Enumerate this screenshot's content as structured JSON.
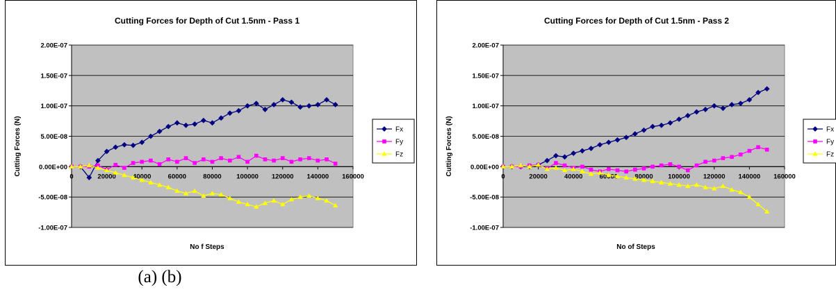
{
  "figure": {
    "caption": "(a)  (b)"
  },
  "chart_data": [
    {
      "type": "line",
      "title": "Cutting Forces for Depth of Cut 1.5nm - Pass 1",
      "xlabel": "No f Steps",
      "ylabel": "Cutting Forces (N)",
      "xlim": [
        0,
        160000
      ],
      "ylim": [
        -1e-07,
        2e-07
      ],
      "x_ticks": [
        "0",
        "20000",
        "40000",
        "60000",
        "80000",
        "100000",
        "120000",
        "140000",
        "160000"
      ],
      "y_ticks": [
        "2.00E-07",
        "1.50E-07",
        "1.00E-07",
        "5.00E-08",
        "0.00E+00",
        "-5.00E-08",
        "-1.00E-07"
      ],
      "grid": "horizontal major gridlines",
      "plot_background": "#c0c0c0",
      "legend_position": "right",
      "series": [
        {
          "name": "Fx",
          "color": "#000080",
          "marker": "diamond",
          "x": [
            0,
            5000,
            10000,
            15000,
            20000,
            25000,
            30000,
            35000,
            40000,
            45000,
            50000,
            55000,
            60000,
            65000,
            70000,
            75000,
            80000,
            85000,
            90000,
            95000,
            100000,
            105000,
            110000,
            115000,
            120000,
            125000,
            130000,
            135000,
            140000,
            145000,
            150000
          ],
          "values": [
            0.0,
            0.0,
            -1.8e-08,
            1e-08,
            2.5e-08,
            3.2e-08,
            3.6e-08,
            3.5e-08,
            4e-08,
            5e-08,
            5.8e-08,
            6.6e-08,
            7.2e-08,
            6.8e-08,
            7e-08,
            7.6e-08,
            7.2e-08,
            8e-08,
            8.8e-08,
            9.2e-08,
            1e-07,
            1.04e-07,
            9.4e-08,
            1.02e-07,
            1.1e-07,
            1.06e-07,
            9.8e-08,
            1e-07,
            1.02e-07,
            1.1e-07,
            1.02e-07
          ]
        },
        {
          "name": "Fy",
          "color": "#ff00ff",
          "marker": "square",
          "x": [
            0,
            5000,
            10000,
            15000,
            20000,
            25000,
            30000,
            35000,
            40000,
            45000,
            50000,
            55000,
            60000,
            65000,
            70000,
            75000,
            80000,
            85000,
            90000,
            95000,
            100000,
            105000,
            110000,
            115000,
            120000,
            125000,
            130000,
            135000,
            140000,
            145000,
            150000
          ],
          "values": [
            0.0,
            0.0,
            0.0,
            2e-09,
            -5e-09,
            3e-09,
            -2e-09,
            6e-09,
            8e-09,
            1e-08,
            4e-09,
            1.2e-08,
            8e-09,
            1.4e-08,
            6e-09,
            1.2e-08,
            8e-09,
            1.4e-08,
            1e-08,
            1.6e-08,
            8e-09,
            1.8e-08,
            1.2e-08,
            1e-08,
            1.4e-08,
            8e-09,
            1.2e-08,
            1.4e-08,
            1e-08,
            1.2e-08,
            5e-09
          ]
        },
        {
          "name": "Fz",
          "color": "#ffff00",
          "marker": "triangle",
          "x": [
            0,
            5000,
            10000,
            15000,
            20000,
            25000,
            30000,
            35000,
            40000,
            45000,
            50000,
            55000,
            60000,
            65000,
            70000,
            75000,
            80000,
            85000,
            90000,
            95000,
            100000,
            105000,
            110000,
            115000,
            120000,
            125000,
            130000,
            135000,
            140000,
            145000,
            150000
          ],
          "values": [
            0.0,
            0.0,
            2e-09,
            -2e-09,
            -6e-09,
            -1e-08,
            -1.4e-08,
            -1.8e-08,
            -2.2e-08,
            -2.6e-08,
            -3e-08,
            -3.4e-08,
            -4e-08,
            -4.4e-08,
            -4e-08,
            -4.8e-08,
            -4.4e-08,
            -4.6e-08,
            -5.2e-08,
            -5.8e-08,
            -6.2e-08,
            -6.6e-08,
            -6e-08,
            -5.6e-08,
            -6.2e-08,
            -5.4e-08,
            -5e-08,
            -4.8e-08,
            -5.2e-08,
            -5.6e-08,
            -6.4e-08
          ]
        }
      ]
    },
    {
      "type": "line",
      "title": "Cutting Forces for Depth of Cut 1.5nm - Pass 2",
      "xlabel": "No of Steps",
      "ylabel": "Cutting Forces (N)",
      "xlim": [
        0,
        160000
      ],
      "ylim": [
        -1e-07,
        2e-07
      ],
      "x_ticks": [
        "0",
        "20000",
        "40000",
        "60000",
        "80000",
        "100000",
        "120000",
        "140000",
        "160000"
      ],
      "y_ticks": [
        "2.00E-07",
        "1.50E-07",
        "1.00E-07",
        "5.00E-08",
        "0.00E+00",
        "-5.00E-08",
        "-1.00E-07"
      ],
      "grid": "horizontal major gridlines",
      "plot_background": "#c0c0c0",
      "legend_position": "right",
      "series": [
        {
          "name": "Fx",
          "color": "#000080",
          "marker": "diamond",
          "x": [
            0,
            5000,
            10000,
            15000,
            20000,
            25000,
            30000,
            35000,
            40000,
            45000,
            50000,
            55000,
            60000,
            65000,
            70000,
            75000,
            80000,
            85000,
            90000,
            95000,
            100000,
            105000,
            110000,
            115000,
            120000,
            125000,
            130000,
            135000,
            140000,
            145000,
            150000
          ],
          "values": [
            0.0,
            0.0,
            0.0,
            0.0,
            3e-09,
            1e-08,
            1.8e-08,
            1.6e-08,
            2.2e-08,
            2.6e-08,
            3e-08,
            3.6e-08,
            4e-08,
            4.4e-08,
            4.8e-08,
            5.4e-08,
            6e-08,
            6.6e-08,
            6.8e-08,
            7.2e-08,
            7.8e-08,
            8.4e-08,
            9e-08,
            9.4e-08,
            1e-07,
            9.6e-08,
            1.02e-07,
            1.04e-07,
            1.1e-07,
            1.22e-07,
            1.28e-07
          ]
        },
        {
          "name": "Fy",
          "color": "#ff00ff",
          "marker": "square",
          "x": [
            0,
            5000,
            10000,
            15000,
            20000,
            25000,
            30000,
            35000,
            40000,
            45000,
            50000,
            55000,
            60000,
            65000,
            70000,
            75000,
            80000,
            85000,
            90000,
            95000,
            100000,
            105000,
            110000,
            115000,
            120000,
            125000,
            130000,
            135000,
            140000,
            145000,
            150000
          ],
          "values": [
            0.0,
            0.0,
            0.0,
            2e-09,
            3e-09,
            -3e-09,
            6e-09,
            2e-09,
            -2e-09,
            0.0,
            -5e-09,
            -8e-09,
            -4e-09,
            -6e-09,
            -8e-09,
            -5e-09,
            -3e-09,
            0.0,
            2e-09,
            4e-09,
            0.0,
            -6e-09,
            2e-09,
            8e-09,
            1e-08,
            1.4e-08,
            1.6e-08,
            2e-08,
            2.6e-08,
            3.2e-08,
            2.8e-08
          ]
        },
        {
          "name": "Fz",
          "color": "#ffff00",
          "marker": "triangle",
          "x": [
            0,
            5000,
            10000,
            15000,
            20000,
            25000,
            30000,
            35000,
            40000,
            45000,
            50000,
            55000,
            60000,
            65000,
            70000,
            75000,
            80000,
            85000,
            90000,
            95000,
            100000,
            105000,
            110000,
            115000,
            120000,
            125000,
            130000,
            135000,
            140000,
            145000,
            150000
          ],
          "values": [
            0.0,
            0.0,
            2e-09,
            0.0,
            3e-09,
            -4e-09,
            -2e-09,
            -6e-09,
            -4e-09,
            -8e-09,
            -1.2e-08,
            -1e-08,
            -1.4e-08,
            -1.6e-08,
            -1.8e-08,
            -2e-08,
            -2.2e-08,
            -2.4e-08,
            -2.6e-08,
            -2.8e-08,
            -3e-08,
            -3.2e-08,
            -3e-08,
            -3.4e-08,
            -3.6e-08,
            -3.2e-08,
            -3.8e-08,
            -4.2e-08,
            -5e-08,
            -6.2e-08,
            -7.4e-08
          ]
        }
      ]
    }
  ]
}
